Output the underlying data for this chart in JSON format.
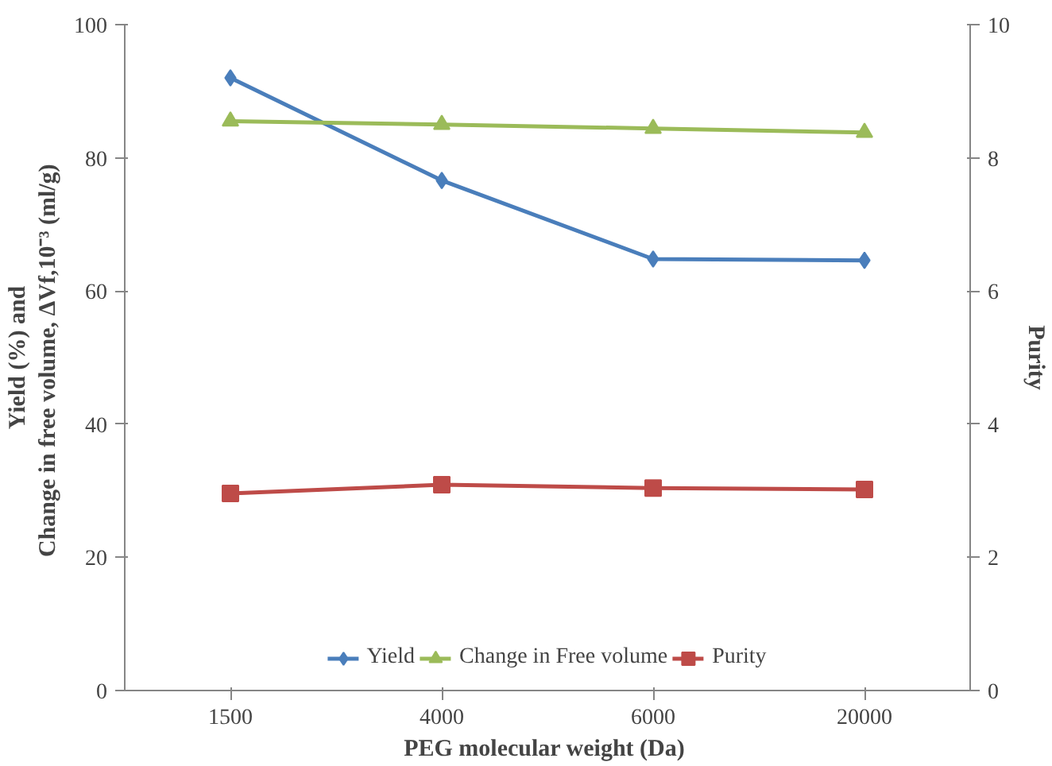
{
  "chart_data": {
    "type": "line",
    "categories": [
      "1500",
      "4000",
      "6000",
      "20000"
    ],
    "xlabel": "PEG  molecular weight (Da)",
    "ylabel": "Yield (%) and\nChange in free volume,  ΔVf,10⁻³ (ml/g)",
    "y2label": "Purity",
    "ylim": [
      0,
      100
    ],
    "yticks": [
      0,
      20,
      40,
      60,
      80,
      100
    ],
    "y2lim": [
      0,
      10
    ],
    "y2ticks": [
      0,
      2,
      4,
      6,
      8,
      10
    ],
    "grid": false,
    "legend": "bottom",
    "series": [
      {
        "name": "Yield",
        "color": "#4a7ebb",
        "marker": "diamond",
        "values": [
          92,
          76.6,
          64.8,
          64.6
        ]
      },
      {
        "name": "Change in Free volume",
        "color": "#9bbb59",
        "marker": "triangle",
        "values": [
          85.5,
          85,
          84.4,
          83.8
        ]
      },
      {
        "name": "Purity",
        "color": "#be4b48",
        "marker": "square",
        "axis": "y2",
        "values": [
          2.96,
          3.09,
          3.04,
          3.02
        ]
      }
    ]
  }
}
